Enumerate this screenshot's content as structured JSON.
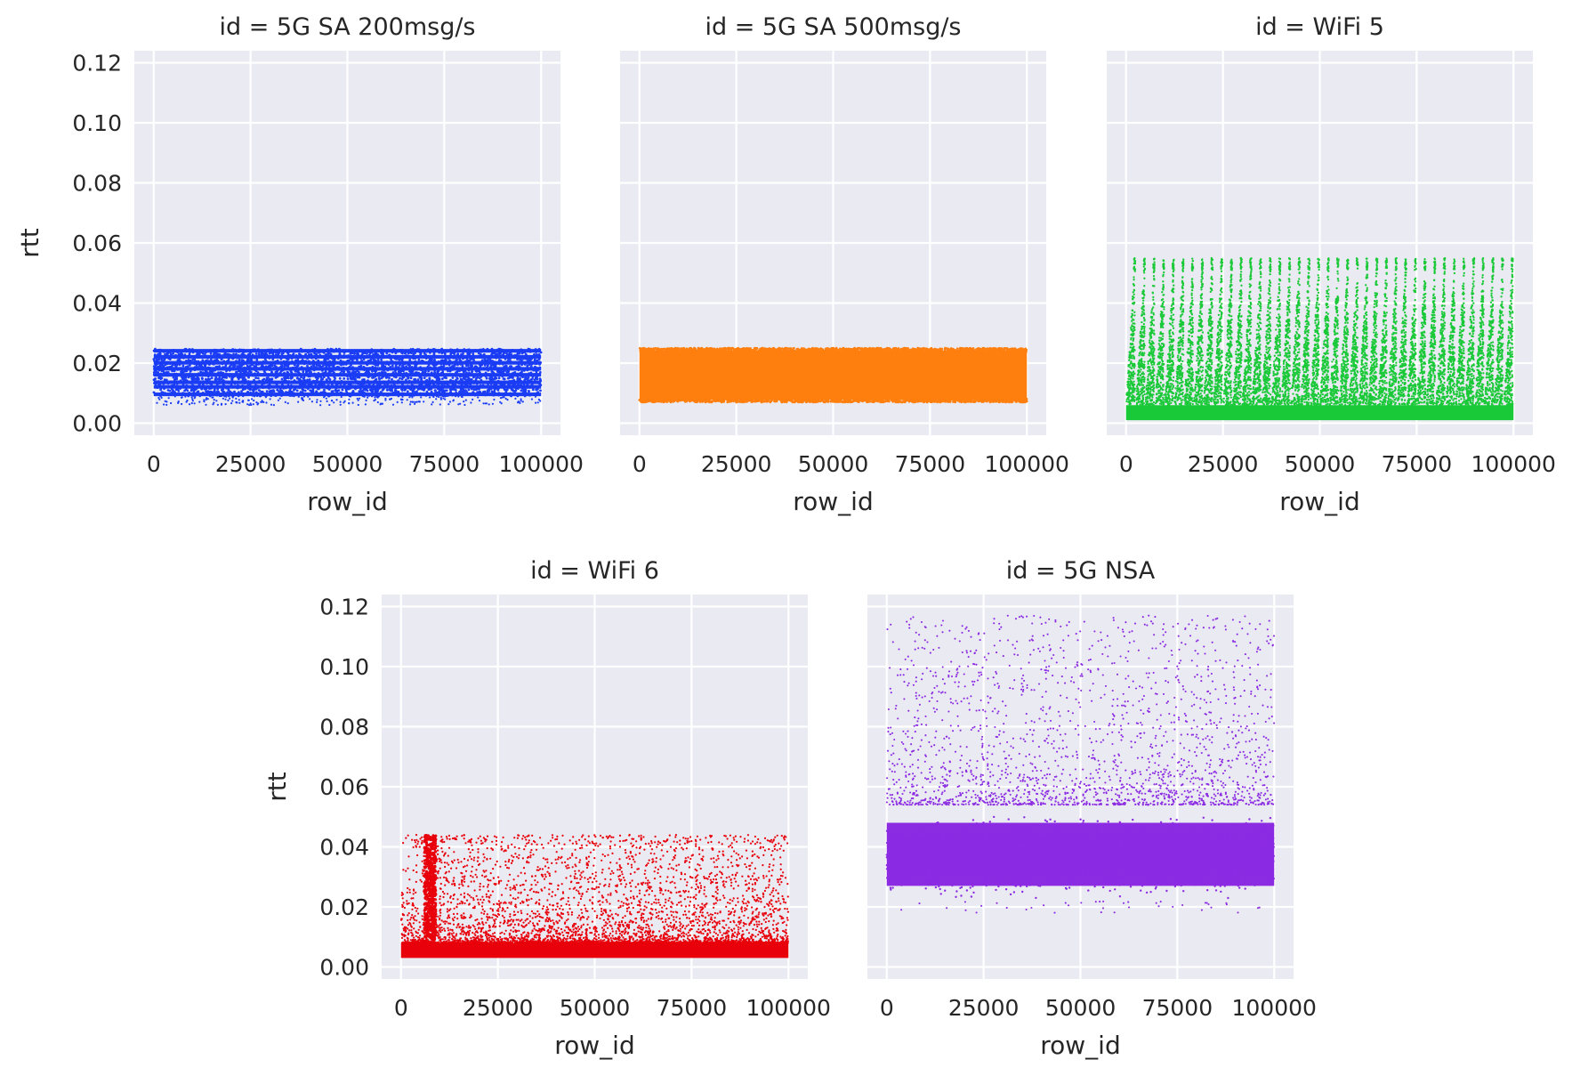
{
  "chart_data": [
    {
      "type": "scatter",
      "title": "id = 5G SA 200msg/s",
      "xlabel": "row_id",
      "ylabel": "rtt",
      "xlim": [
        -5000,
        105000
      ],
      "ylim": [
        -0.004,
        0.124
      ],
      "xticks": [
        0,
        25000,
        50000,
        75000,
        100000
      ],
      "yticks": [
        0.0,
        0.02,
        0.04,
        0.06,
        0.08,
        0.1,
        0.12
      ],
      "x_tick_labels": [
        "0",
        "25000",
        "50000",
        "75000",
        "100000"
      ],
      "y_tick_labels": [
        "0.00",
        "0.02",
        "0.04",
        "0.06",
        "0.08",
        "0.10",
        "0.12"
      ],
      "color": "#1a3cf5",
      "pattern": "bands",
      "x_range": [
        0,
        100000
      ],
      "bands": [
        0.009,
        0.0115,
        0.013,
        0.0155,
        0.0175,
        0.0195,
        0.0215,
        0.0235
      ],
      "outliers_y_range": [
        0.006,
        0.009
      ],
      "grid": true
    },
    {
      "type": "scatter",
      "title": "id = 5G SA 500msg/s",
      "xlabel": "row_id",
      "ylabel": "",
      "xlim": [
        -5000,
        105000
      ],
      "ylim": [
        -0.004,
        0.124
      ],
      "xticks": [
        0,
        25000,
        50000,
        75000,
        100000
      ],
      "yticks": [
        0.0,
        0.02,
        0.04,
        0.06,
        0.08,
        0.1,
        0.12
      ],
      "x_tick_labels": [
        "0",
        "25000",
        "50000",
        "75000",
        "100000"
      ],
      "y_tick_labels": [],
      "color": "#ff7f0e",
      "pattern": "uniform",
      "x_range": [
        0,
        100000
      ],
      "y_range": [
        0.007,
        0.025
      ],
      "grid": true
    },
    {
      "type": "scatter",
      "title": "id = WiFi 5",
      "xlabel": "row_id",
      "ylabel": "",
      "xlim": [
        -5000,
        105000
      ],
      "ylim": [
        -0.004,
        0.124
      ],
      "xticks": [
        0,
        25000,
        50000,
        75000,
        100000
      ],
      "yticks": [
        0.0,
        0.02,
        0.04,
        0.06,
        0.08,
        0.1,
        0.12
      ],
      "x_tick_labels": [
        "0",
        "25000",
        "50000",
        "75000",
        "100000"
      ],
      "y_tick_labels": [],
      "color": "#1ac938",
      "pattern": "sawtooth",
      "x_range": [
        0,
        100000
      ],
      "y_base_range": [
        0.001,
        0.006
      ],
      "y_max": 0.055,
      "n_cycles": 40,
      "grid": true
    },
    {
      "type": "scatter",
      "title": "id = WiFi 6",
      "xlabel": "row_id",
      "ylabel": "rtt",
      "xlim": [
        -5000,
        105000
      ],
      "ylim": [
        -0.004,
        0.124
      ],
      "xticks": [
        0,
        25000,
        50000,
        75000,
        100000
      ],
      "yticks": [
        0.0,
        0.02,
        0.04,
        0.06,
        0.08,
        0.1,
        0.12
      ],
      "x_tick_labels": [
        "0",
        "25000",
        "50000",
        "75000",
        "100000"
      ],
      "y_tick_labels": [
        "0.00",
        "0.02",
        "0.04",
        "0.06",
        "0.08",
        "0.10",
        "0.12"
      ],
      "color": "#e8000b",
      "pattern": "base_sparse",
      "x_range": [
        0,
        100000
      ],
      "y_base_range": [
        0.003,
        0.008
      ],
      "y_sparse_max": 0.044,
      "spike_x_range": [
        6000,
        9000
      ],
      "spike_y_range": [
        0.008,
        0.044
      ],
      "grid": true
    },
    {
      "type": "scatter",
      "title": "id = 5G NSA",
      "xlabel": "row_id",
      "ylabel": "",
      "xlim": [
        -5000,
        105000
      ],
      "ylim": [
        -0.004,
        0.124
      ],
      "xticks": [
        0,
        25000,
        50000,
        75000,
        100000
      ],
      "yticks": [
        0.0,
        0.02,
        0.04,
        0.06,
        0.08,
        0.1,
        0.12
      ],
      "x_tick_labels": [
        "0",
        "25000",
        "50000",
        "75000",
        "100000"
      ],
      "y_tick_labels": [],
      "color": "#8b2be2",
      "pattern": "dense_sparse",
      "x_range": [
        0,
        100000
      ],
      "y_dense_range": [
        0.022,
        0.054
      ],
      "y_sparse_max": 0.117,
      "y_min_outlier": 0.018,
      "grid": true
    }
  ]
}
